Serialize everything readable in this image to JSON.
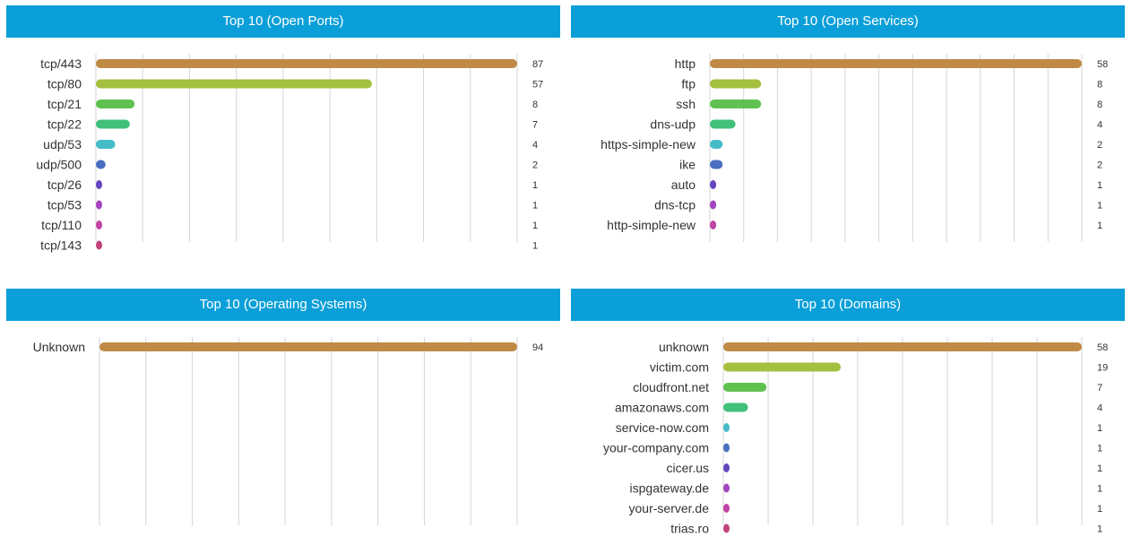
{
  "colors": {
    "header_bg": "#0a9fd8",
    "header_text": "#ffffff",
    "grid": "#d6d6d6",
    "label": "#333333",
    "palette": [
      "#c08a45",
      "#a5c03f",
      "#5fc250",
      "#41c07a",
      "#47bcc9",
      "#4a6fc1",
      "#6546c0",
      "#a544c0",
      "#c044a5",
      "#c0447a"
    ]
  },
  "chart_data": [
    {
      "type": "bar",
      "orientation": "horizontal",
      "title": "Top 10 (Open Ports)",
      "categories": [
        "tcp/443",
        "tcp/80",
        "tcp/21",
        "tcp/22",
        "udp/53",
        "udp/500",
        "tcp/26",
        "tcp/53",
        "tcp/110",
        "tcp/143"
      ],
      "values": [
        87,
        57,
        8,
        7,
        4,
        2,
        1,
        1,
        1,
        1
      ],
      "data_labels": [
        "87",
        "57",
        "8",
        "7",
        "4",
        "2",
        "1",
        "1",
        "1",
        "1"
      ],
      "xlim": [
        0,
        87
      ],
      "grid": true
    },
    {
      "type": "bar",
      "orientation": "horizontal",
      "title": "Top 10 (Open Services)",
      "categories": [
        "http",
        "ftp",
        "ssh",
        "dns-udp",
        "https-simple-new",
        "ike",
        "auto",
        "dns-tcp",
        "http-simple-new"
      ],
      "values": [
        58,
        8,
        8,
        4,
        2,
        2,
        1,
        1,
        1
      ],
      "data_labels": [
        "58",
        "8",
        "8",
        "4",
        "2",
        "2",
        "1",
        "1",
        "1"
      ],
      "xlim": [
        0,
        58
      ],
      "grid": true
    },
    {
      "type": "bar",
      "orientation": "horizontal",
      "title": "Top 10 (Operating Systems)",
      "categories": [
        "Unknown"
      ],
      "values": [
        94
      ],
      "data_labels": [
        "94"
      ],
      "xlim": [
        0,
        94
      ],
      "grid": true
    },
    {
      "type": "bar",
      "orientation": "horizontal",
      "title": "Top 10 (Domains)",
      "categories": [
        "unknown",
        "victim.com",
        "cloudfront.net",
        "amazonaws.com",
        "service-now.com",
        "your-company.com",
        "cicer.us",
        "ispgateway.de",
        "your-server.de",
        "trias.ro"
      ],
      "values": [
        58,
        19,
        7,
        4,
        1,
        1,
        1,
        1,
        1,
        1
      ],
      "data_labels": [
        "58",
        "19",
        "7",
        "4",
        "1",
        "1",
        "1",
        "1",
        "1",
        "1"
      ],
      "xlim": [
        0,
        58
      ],
      "grid": true
    }
  ]
}
